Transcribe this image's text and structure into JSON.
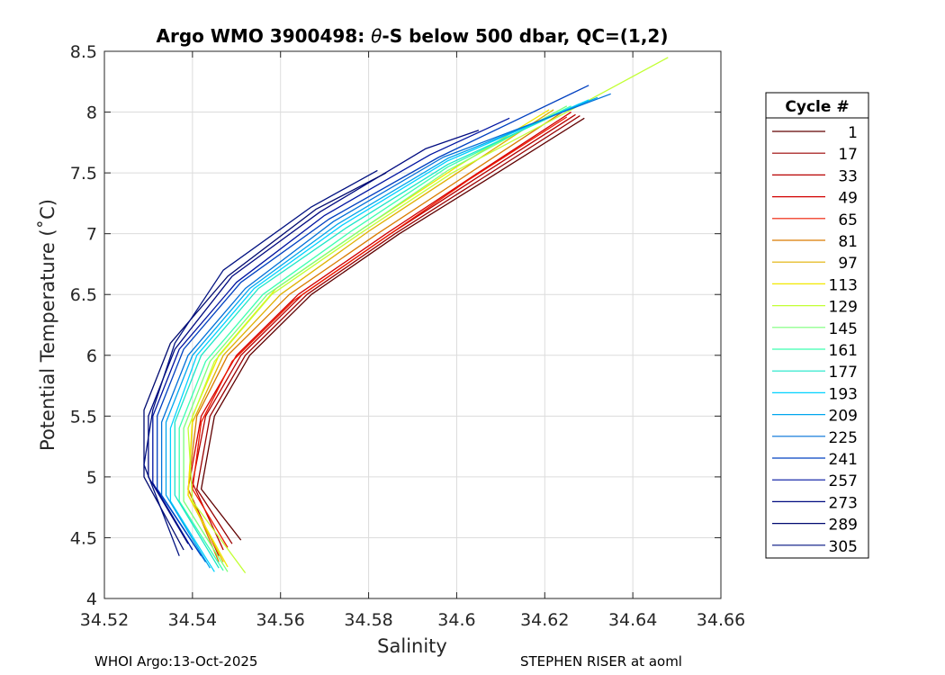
{
  "chart_data": {
    "type": "line",
    "title_prefix": "Argo WMO 3900498: ",
    "title_theta": "θ",
    "title_suffix": "-S below 500 dbar,  QC=(1,2)",
    "xlabel": "Salinity",
    "ylabel": "Potential Temperature (˚C)",
    "xlim": [
      34.52,
      34.66
    ],
    "ylim": [
      4,
      8.5
    ],
    "xticks": [
      "34.52",
      "34.54",
      "34.56",
      "34.58",
      "34.6",
      "34.62",
      "34.64",
      "34.66"
    ],
    "yticks": [
      "4",
      "4.5",
      "5",
      "5.5",
      "6",
      "6.5",
      "7",
      "7.5",
      "8",
      "8.5"
    ],
    "grid": true,
    "legend": {
      "title": "Cycle #",
      "position": "right",
      "entries": [
        {
          "label": "1",
          "color": "#600000"
        },
        {
          "label": "17",
          "color": "#9a0000"
        },
        {
          "label": "33",
          "color": "#b80000"
        },
        {
          "label": "49",
          "color": "#d20000"
        },
        {
          "label": "65",
          "color": "#ee1a00"
        },
        {
          "label": "81",
          "color": "#d97a00"
        },
        {
          "label": "97",
          "color": "#e0b000"
        },
        {
          "label": "113",
          "color": "#f2e800"
        },
        {
          "label": "129",
          "color": "#c2ff34"
        },
        {
          "label": "145",
          "color": "#7cff7a"
        },
        {
          "label": "161",
          "color": "#3cffb0"
        },
        {
          "label": "177",
          "color": "#1ae6c8"
        },
        {
          "label": "193",
          "color": "#00d2ff"
        },
        {
          "label": "209",
          "color": "#00a6ee"
        },
        {
          "label": "225",
          "color": "#0070d8"
        },
        {
          "label": "241",
          "color": "#0040c0"
        },
        {
          "label": "257",
          "color": "#0014a0"
        },
        {
          "label": "273",
          "color": "#000a80"
        },
        {
          "label": "289",
          "color": "#000a70"
        },
        {
          "label": "305",
          "color": "#001080"
        }
      ]
    },
    "series": [
      {
        "color": "#600000",
        "x": [
          34.551,
          34.542,
          34.545,
          34.553,
          34.567,
          34.587,
          34.607,
          34.629
        ],
        "y": [
          4.48,
          4.9,
          5.5,
          6.0,
          6.5,
          7.0,
          7.45,
          7.95
        ]
      },
      {
        "color": "#9a0000",
        "x": [
          34.549,
          34.541,
          34.544,
          34.552,
          34.566,
          34.586,
          34.606,
          34.628
        ],
        "y": [
          4.45,
          4.9,
          5.5,
          6.0,
          6.5,
          7.0,
          7.46,
          7.97
        ]
      },
      {
        "color": "#b80000",
        "x": [
          34.547,
          34.54,
          34.543,
          34.551,
          34.565,
          34.585,
          34.605,
          34.627
        ],
        "y": [
          4.4,
          4.95,
          5.5,
          6.0,
          6.5,
          7.0,
          7.47,
          7.98
        ]
      },
      {
        "color": "#d20000",
        "x": [
          34.546,
          34.539,
          34.542,
          34.55,
          34.564,
          34.584,
          34.604,
          34.626
        ],
        "y": [
          4.35,
          4.9,
          5.5,
          6.0,
          6.5,
          7.0,
          7.48,
          8.0
        ]
      },
      {
        "color": "#ee1a00",
        "x": [
          34.548,
          34.54,
          34.542,
          34.549,
          34.563,
          34.583,
          34.603,
          34.625
        ],
        "y": [
          4.42,
          4.9,
          5.45,
          5.95,
          6.45,
          6.95,
          7.45,
          7.96
        ]
      },
      {
        "color": "#d97a00",
        "x": [
          34.546,
          34.539,
          34.541,
          34.548,
          34.562,
          34.582,
          34.603,
          34.624
        ],
        "y": [
          4.3,
          4.9,
          5.5,
          6.0,
          6.5,
          7.0,
          7.5,
          8.0
        ]
      },
      {
        "color": "#e0b000",
        "x": [
          34.547,
          34.539,
          34.54,
          34.547,
          34.56,
          34.58,
          34.601,
          34.622
        ],
        "y": [
          4.3,
          4.85,
          5.45,
          6.0,
          6.5,
          7.02,
          7.52,
          8.02
        ]
      },
      {
        "color": "#f2e800",
        "x": [
          34.548,
          34.539,
          34.54,
          34.546,
          34.559,
          34.579,
          34.6,
          34.621
        ],
        "y": [
          4.26,
          4.85,
          5.5,
          6.0,
          6.55,
          7.05,
          7.55,
          8.02
        ]
      },
      {
        "color": "#c2ff34",
        "x": [
          34.552,
          34.54,
          34.539,
          34.545,
          34.558,
          34.578,
          34.599,
          34.625,
          34.648
        ],
        "y": [
          4.21,
          4.8,
          5.4,
          5.95,
          6.5,
          7.0,
          7.5,
          8.0,
          8.45
        ]
      },
      {
        "color": "#7cff7a",
        "x": [
          34.548,
          34.538,
          34.538,
          34.544,
          34.557,
          34.577,
          34.598,
          34.625
        ],
        "y": [
          4.22,
          4.8,
          5.4,
          5.95,
          6.5,
          7.0,
          7.52,
          8.05
        ]
      },
      {
        "color": "#3cffb0",
        "x": [
          34.547,
          34.537,
          34.537,
          34.543,
          34.556,
          34.576,
          34.598,
          34.626
        ],
        "y": [
          4.23,
          4.8,
          5.4,
          5.95,
          6.5,
          7.02,
          7.55,
          8.05
        ]
      },
      {
        "color": "#1ae6c8",
        "x": [
          34.546,
          34.536,
          34.536,
          34.542,
          34.555,
          34.575,
          34.598,
          34.628
        ],
        "y": [
          4.25,
          4.85,
          5.45,
          6.0,
          6.55,
          7.05,
          7.57,
          8.07
        ]
      },
      {
        "color": "#00d2ff",
        "x": [
          34.545,
          34.535,
          34.535,
          34.541,
          34.554,
          34.574,
          34.598,
          34.63
        ],
        "y": [
          4.22,
          4.8,
          5.4,
          6.0,
          6.55,
          7.07,
          7.6,
          8.1
        ]
      },
      {
        "color": "#00a6ee",
        "x": [
          34.544,
          34.534,
          34.534,
          34.54,
          34.553,
          34.573,
          34.598,
          34.632
        ],
        "y": [
          4.25,
          4.85,
          5.45,
          6.0,
          6.55,
          7.08,
          7.62,
          8.12
        ]
      },
      {
        "color": "#0070d8",
        "x": [
          34.543,
          34.533,
          34.533,
          34.539,
          34.552,
          34.572,
          34.597,
          34.635
        ],
        "y": [
          4.3,
          4.85,
          5.45,
          6.0,
          6.55,
          7.1,
          7.63,
          8.15
        ]
      },
      {
        "color": "#0040c0",
        "x": [
          34.542,
          34.532,
          34.532,
          34.538,
          34.551,
          34.571,
          34.596,
          34.63
        ],
        "y": [
          4.35,
          4.9,
          5.5,
          6.05,
          6.6,
          7.12,
          7.63,
          8.22
        ]
      },
      {
        "color": "#0014a0",
        "x": [
          34.54,
          34.531,
          34.531,
          34.537,
          34.55,
          34.57,
          34.594,
          34.612
        ],
        "y": [
          4.4,
          4.95,
          5.5,
          6.05,
          6.6,
          7.15,
          7.65,
          7.95
        ]
      },
      {
        "color": "#000a80",
        "x": [
          34.539,
          34.53,
          34.53,
          34.536,
          34.549,
          34.569,
          34.593,
          34.605
        ],
        "y": [
          4.45,
          5.0,
          5.5,
          6.05,
          6.65,
          7.18,
          7.7,
          7.85
        ]
      },
      {
        "color": "#000a70",
        "x": [
          34.538,
          34.529,
          34.529,
          34.535,
          34.548,
          34.568,
          34.584
        ],
        "y": [
          4.4,
          5.0,
          5.55,
          6.1,
          6.65,
          7.2,
          7.5
        ]
      },
      {
        "color": "#001080",
        "x": [
          34.537,
          34.529,
          34.531,
          34.536,
          34.547,
          34.567,
          34.582
        ],
        "y": [
          4.35,
          5.1,
          5.55,
          6.1,
          6.7,
          7.22,
          7.52
        ]
      }
    ]
  },
  "footer": {
    "left": "WHOI Argo:13-Oct-2025",
    "right": "STEPHEN RISER at aoml"
  }
}
